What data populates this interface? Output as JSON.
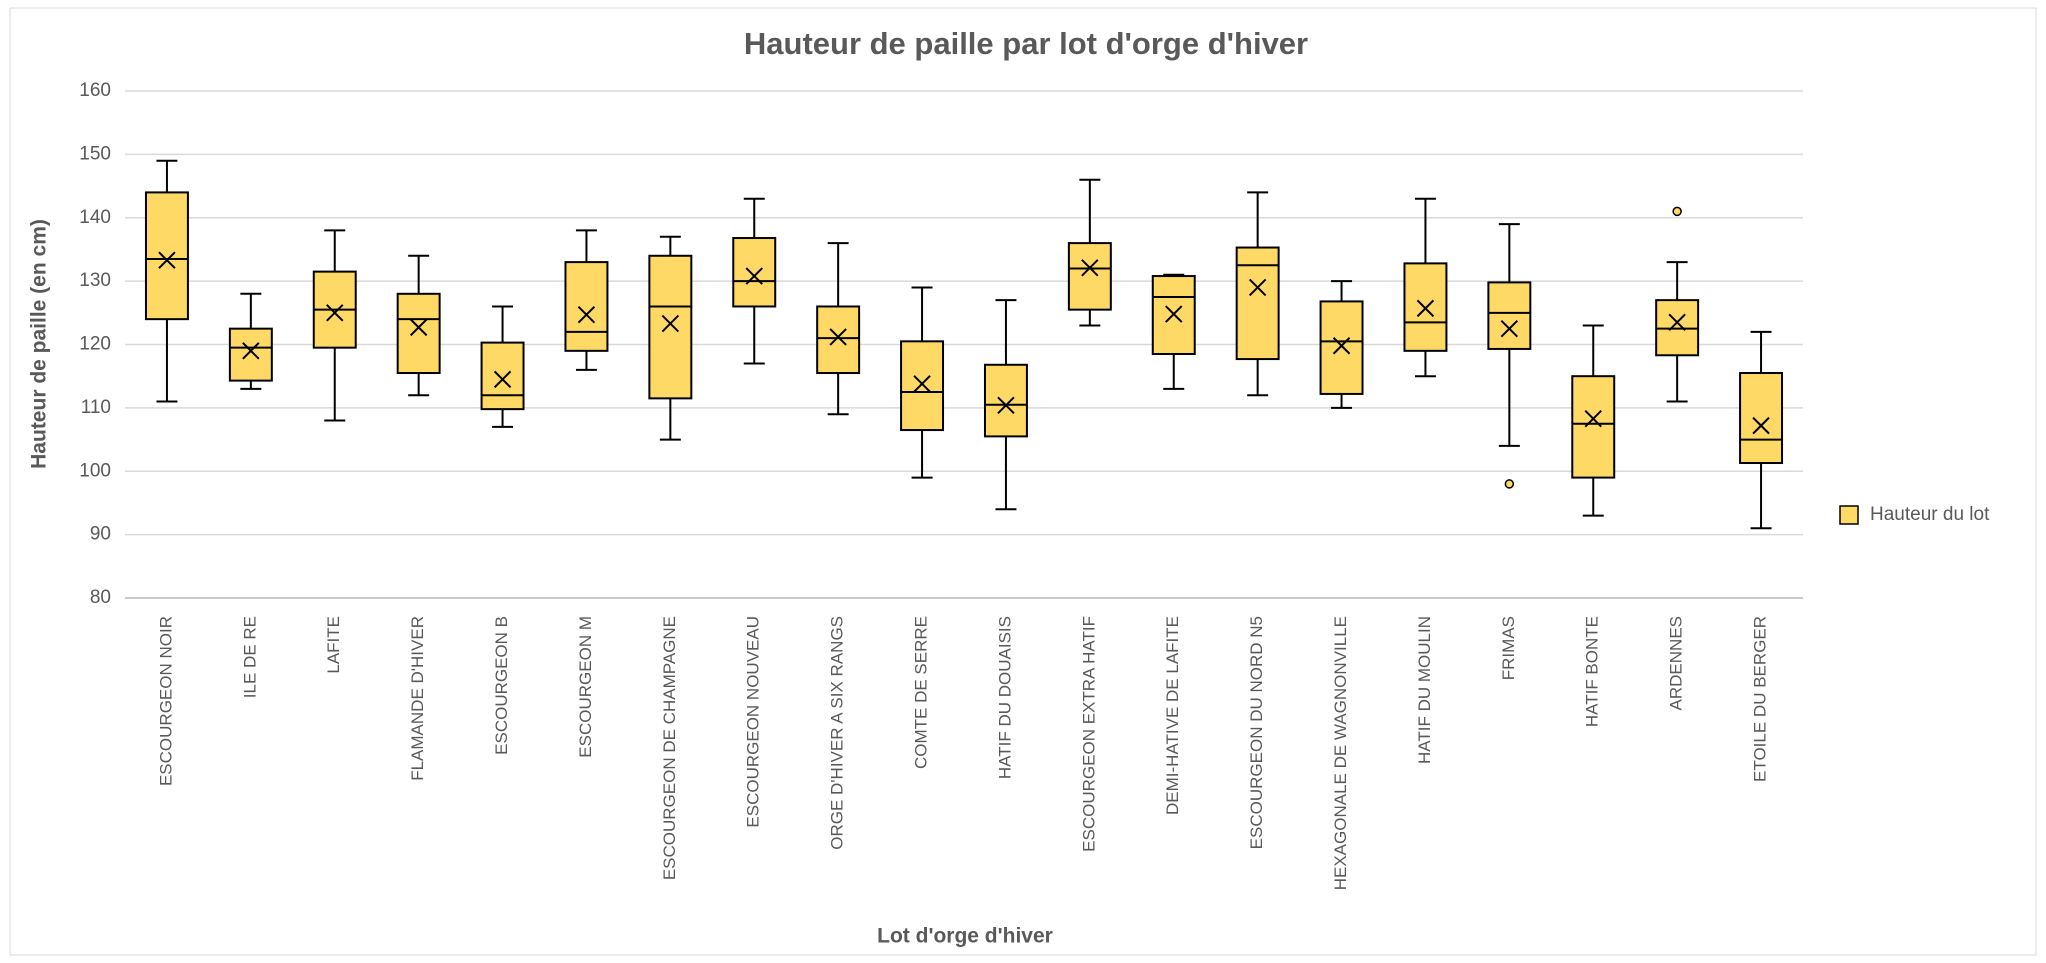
{
  "chart_data": {
    "type": "box",
    "title": "Hauteur de paille par lot d'orge d'hiver",
    "x_label": "Lot d'orge d'hiver",
    "y_label": "Hauteur de paille (en cm)",
    "categories": [
      "ESCOURGEON NOIR",
      "ILE DE RE",
      "LAFITE",
      "FLAMANDE D'HIVER",
      "ESCOURGEON B",
      "ESCOURGEON M",
      "ESCOURGEON DE CHAMPAGNE",
      "ESCOURGEON NOUVEAU",
      "ORGE D'HIVER A SIX RANGS",
      "COMTE DE SERRE",
      "HATIF DU DOUAISIS",
      "ESCOURGEON EXTRA HATIF",
      "DEMI-HATIVE DE LAFITE",
      "ESCOURGEON DU NORD N5",
      "HEXAGONALE DE WAGNONVILLE",
      "HATIF DU MOULIN",
      "FRIMAS",
      "HATIF BONTE",
      "ARDENNES",
      "ETOILE DU BERGER"
    ],
    "series": [
      {
        "name": "Hauteur du lot",
        "color": "#ffd966",
        "min": [
          111,
          113,
          108,
          112,
          107,
          116,
          105,
          117,
          109,
          99,
          94,
          123,
          113,
          112,
          110,
          115,
          104,
          93,
          111,
          91
        ],
        "q1": [
          124,
          114.3,
          119.5,
          115.5,
          109.8,
          119,
          111.5,
          126,
          115.5,
          106.5,
          105.5,
          125.5,
          118.5,
          117.7,
          112.2,
          119,
          119.3,
          99,
          118.3,
          101.3
        ],
        "median": [
          133.5,
          119.5,
          125.5,
          124,
          112,
          122,
          126,
          130,
          121,
          112.5,
          110.5,
          132,
          127.5,
          132.5,
          120.5,
          123.5,
          125,
          107.5,
          122.5,
          105
        ],
        "q3": [
          144,
          122.5,
          131.5,
          128,
          120.3,
          133,
          134,
          136.8,
          126,
          120.5,
          116.8,
          136,
          130.8,
          135.3,
          126.8,
          132.8,
          129.8,
          115,
          127,
          115.5
        ],
        "max": [
          149,
          128,
          138,
          134,
          126,
          138,
          137,
          143,
          136,
          129,
          127,
          146,
          131,
          144,
          130,
          143,
          139,
          123,
          133,
          122
        ],
        "mean": [
          133.3,
          119,
          125,
          122.7,
          114.5,
          124.7,
          123.3,
          130.8,
          121.2,
          113.8,
          110.4,
          132.1,
          124.8,
          129,
          119.8,
          125.7,
          122.5,
          108.3,
          123.5,
          107.2
        ],
        "outliers": [
          [],
          [],
          [],
          [],
          [],
          [],
          [],
          [],
          [],
          [],
          [],
          [],
          [],
          [],
          [],
          [],
          [
            98
          ],
          [],
          [
            141
          ],
          []
        ]
      }
    ],
    "ylim": [
      80,
      160
    ],
    "yticks": [
      80,
      90,
      100,
      110,
      120,
      130,
      140,
      150,
      160
    ],
    "grid": true,
    "legend": "right"
  }
}
